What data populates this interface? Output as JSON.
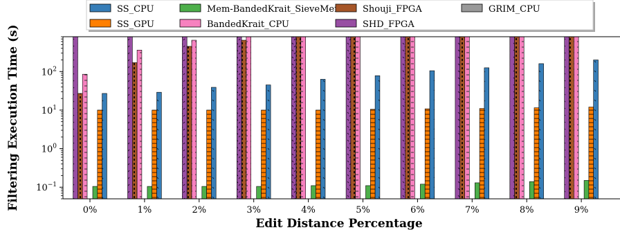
{
  "chart_data": {
    "type": "bar",
    "xlabel": "Edit Distance Percentage",
    "ylabel": "Filtering Execution Time (s)",
    "yscale": "log",
    "ylim": [
      0.05,
      800
    ],
    "yticks": [
      {
        "value": 0.1,
        "base": "10",
        "exp": "−1"
      },
      {
        "value": 1,
        "base": "10",
        "exp": "0"
      },
      {
        "value": 10,
        "base": "10",
        "exp": "1"
      },
      {
        "value": 100,
        "base": "10",
        "exp": "2"
      }
    ],
    "categories": [
      "0%",
      "1%",
      "2%",
      "3%",
      "4%",
      "5%",
      "6%",
      "7%",
      "8%",
      "9%"
    ],
    "legend_position": "top",
    "legend_columns": 4,
    "series": [
      {
        "name": "SHD_FPGA",
        "color": "#984ea3",
        "hatch": "dots",
        "values": [
          800,
          800,
          800,
          800,
          800,
          800,
          800,
          800,
          800,
          800
        ]
      },
      {
        "name": "Shouji_FPGA",
        "color": "#a65628",
        "hatch": "dense",
        "values": [
          27,
          170,
          450,
          650,
          800,
          800,
          800,
          800,
          800,
          800
        ]
      },
      {
        "name": "BandedKrait_CPU",
        "color": "#f781bf",
        "hatch": "lines",
        "values": [
          85,
          360,
          650,
          800,
          800,
          800,
          800,
          800,
          800,
          800
        ]
      },
      {
        "name": "Mem-BandedKrait_SieveMem",
        "color": "#4daf4a",
        "hatch": "none",
        "values": [
          0.105,
          0.105,
          0.105,
          0.105,
          0.11,
          0.11,
          0.12,
          0.13,
          0.14,
          0.15
        ]
      },
      {
        "name": "SS_GPU",
        "color": "#ff7f00",
        "hatch": "hlines",
        "values": [
          10,
          10,
          10,
          10,
          10,
          10.5,
          10.8,
          11,
          11.5,
          12
        ]
      },
      {
        "name": "SS_CPU",
        "color": "#377eb8",
        "hatch": "sparse",
        "values": [
          27,
          29,
          39,
          45,
          63,
          78,
          105,
          125,
          160,
          200
        ]
      }
    ],
    "legend_entries": [
      {
        "name": "SS_CPU",
        "color": "#377eb8"
      },
      {
        "name": "SS_GPU",
        "color": "#ff7f00"
      },
      {
        "name": "Mem-BandedKrait_SieveMem",
        "color": "#4daf4a"
      },
      {
        "name": "BandedKrait_CPU",
        "color": "#f781bf"
      },
      {
        "name": "Shouji_FPGA",
        "color": "#a65628"
      },
      {
        "name": "SHD_FPGA",
        "color": "#984ea3"
      },
      {
        "name": "GRIM_CPU",
        "color": "#999999"
      }
    ]
  }
}
